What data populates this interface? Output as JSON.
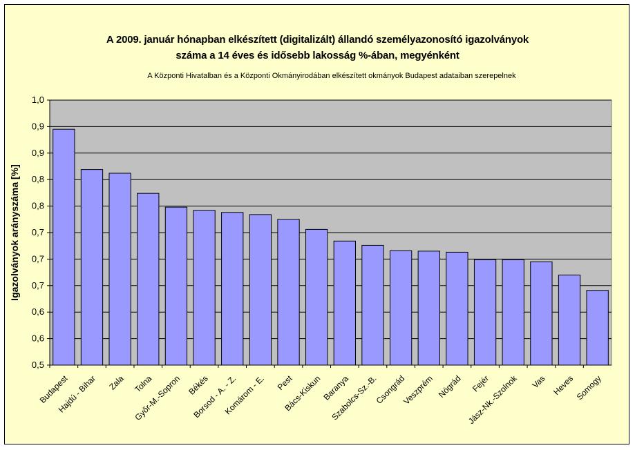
{
  "chart_data": {
    "type": "bar",
    "title_line1": "A 2009. január hónapban elkészített (digitalizált) állandó személyazonosító igazolványok",
    "title_line2": "száma a 14 éves és idősebb lakosság %-ában, megyénként",
    "subtitle": "A Központi Hivatalban és a Központi Okmányirodában elkészített  okmányok Budapest adataiban szerepelnek",
    "xlabel": "",
    "ylabel": "Igazolványok arányszáma [%]",
    "ylim": [
      0.5,
      1.0
    ],
    "yticks": [
      0.5,
      0.55,
      0.6,
      0.65,
      0.7,
      0.75,
      0.8,
      0.85,
      0.9,
      0.95,
      1.0
    ],
    "ytick_labels": [
      "0,5",
      "0,6",
      "0,6",
      "0,7",
      "0,7",
      "0,7",
      "0,8",
      "0,8",
      "0,9",
      "0,9",
      "1,0"
    ],
    "grid": true,
    "legend": "none",
    "bar_color": "#9999ff",
    "background_color": "#ffffcc",
    "categories": [
      "Budapest",
      "Hajdú - Bihar",
      "Zala",
      "Tolna",
      "Győr-M.-Sopron",
      "Békés",
      "Borsod - A. - Z.",
      "Komárom - E.",
      "Pest",
      "Bács-Kiskun",
      "Baranya",
      "Szabolcs-Sz.-B.",
      "Csongrád",
      "Veszprém",
      "Nógrád",
      "Fejér",
      "Jász-Nk.-Szolnok",
      "Vas",
      "Heves",
      "Somogy"
    ],
    "values": [
      0.945,
      0.869,
      0.862,
      0.824,
      0.798,
      0.792,
      0.788,
      0.784,
      0.775,
      0.756,
      0.734,
      0.726,
      0.716,
      0.715,
      0.713,
      0.699,
      0.699,
      0.695,
      0.67,
      0.641
    ]
  }
}
